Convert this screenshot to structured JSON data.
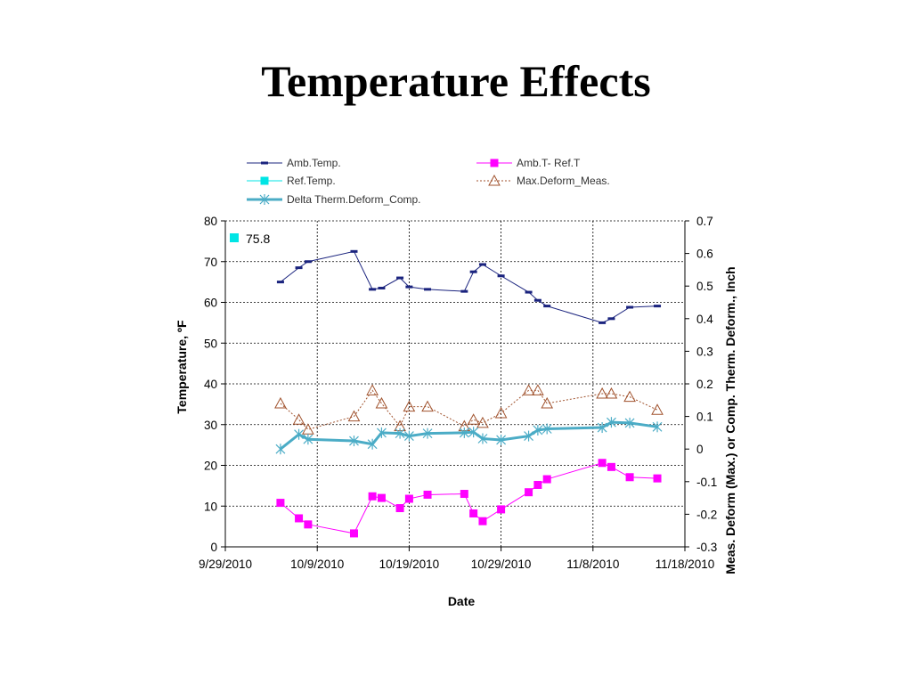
{
  "slide": {
    "title": "Temperature Effects"
  },
  "chart_data": {
    "type": "line",
    "title": "",
    "xlabel": "Date",
    "ylabel": "Temperature, ºF",
    "y2label": "Meas. Deform (Max.) or Comp. Therm. Deform., Inch",
    "x_ticks": [
      "9/29/2010",
      "10/9/2010",
      "10/19/2010",
      "10/29/2010",
      "11/8/2010",
      "11/18/2010"
    ],
    "xlim": [
      "2010-09-29",
      "2010-11-18"
    ],
    "ylim": [
      0,
      80
    ],
    "y_ticks": [
      0,
      10,
      20,
      30,
      40,
      50,
      60,
      70,
      80
    ],
    "y2lim": [
      -0.3,
      0.7
    ],
    "y2_ticks": [
      "-0.3",
      "-0.2",
      "-0.1",
      "0",
      "0.1",
      "0.2",
      "0.3",
      "0.4",
      "0.5",
      "0.6",
      "0.7"
    ],
    "grid": true,
    "legend_position": "top",
    "annotation": {
      "label": "75.8",
      "series": "Ref.Temp.",
      "color": "#00e5e5"
    },
    "series": [
      {
        "name": "Amb.Temp.",
        "axis": "left",
        "color": "#1a237e",
        "marker": "dash",
        "line": "solid",
        "points": [
          [
            "2010-10-05",
            65
          ],
          [
            "2010-10-07",
            68.5
          ],
          [
            "2010-10-08",
            70
          ],
          [
            "2010-10-13",
            72.5
          ],
          [
            "2010-10-15",
            63.2
          ],
          [
            "2010-10-16",
            63.5
          ],
          [
            "2010-10-18",
            66
          ],
          [
            "2010-10-19",
            63.8
          ],
          [
            "2010-10-21",
            63.2
          ],
          [
            "2010-10-25",
            62.7
          ],
          [
            "2010-10-26",
            67.5
          ],
          [
            "2010-10-27",
            69.3
          ],
          [
            "2010-10-29",
            66.5
          ],
          [
            "2010-11-01",
            62.5
          ],
          [
            "2010-11-02",
            60.5
          ],
          [
            "2010-11-03",
            59.1
          ],
          [
            "2010-11-09",
            55
          ],
          [
            "2010-11-10",
            56
          ],
          [
            "2010-11-12",
            58.8
          ],
          [
            "2010-11-15",
            59.1
          ]
        ]
      },
      {
        "name": "Amb.T- Ref.T",
        "axis": "left",
        "color": "#ff00ff",
        "marker": "square",
        "line": "solid",
        "points": [
          [
            "2010-10-05",
            10.8
          ],
          [
            "2010-10-07",
            7
          ],
          [
            "2010-10-08",
            5.5
          ],
          [
            "2010-10-13",
            3.3
          ],
          [
            "2010-10-15",
            12.4
          ],
          [
            "2010-10-16",
            12
          ],
          [
            "2010-10-18",
            9.5
          ],
          [
            "2010-10-19",
            11.8
          ],
          [
            "2010-10-21",
            12.8
          ],
          [
            "2010-10-25",
            13
          ],
          [
            "2010-10-26",
            8.2
          ],
          [
            "2010-10-27",
            6.3
          ],
          [
            "2010-10-29",
            9.2
          ],
          [
            "2010-11-01",
            13.4
          ],
          [
            "2010-11-02",
            15.2
          ],
          [
            "2010-11-03",
            16.6
          ],
          [
            "2010-11-09",
            20.6
          ],
          [
            "2010-11-10",
            19.6
          ],
          [
            "2010-11-12",
            17.1
          ],
          [
            "2010-11-15",
            16.8
          ]
        ]
      },
      {
        "name": "Ref.Temp.",
        "axis": "left",
        "color": "#00e5e5",
        "marker": "square",
        "line": "solid",
        "points": []
      },
      {
        "name": "Max.Deform_Meas.",
        "axis": "right",
        "color": "#a0522d",
        "marker": "triangle",
        "line": "dotted",
        "points": [
          [
            "2010-10-05",
            0.14
          ],
          [
            "2010-10-07",
            0.09
          ],
          [
            "2010-10-08",
            0.06
          ],
          [
            "2010-10-13",
            0.1
          ],
          [
            "2010-10-15",
            0.18
          ],
          [
            "2010-10-16",
            0.14
          ],
          [
            "2010-10-18",
            0.07
          ],
          [
            "2010-10-19",
            0.13
          ],
          [
            "2010-10-21",
            0.13
          ],
          [
            "2010-10-25",
            0.07
          ],
          [
            "2010-10-26",
            0.09
          ],
          [
            "2010-10-27",
            0.08
          ],
          [
            "2010-10-29",
            0.11
          ],
          [
            "2010-11-01",
            0.18
          ],
          [
            "2010-11-02",
            0.18
          ],
          [
            "2010-11-03",
            0.14
          ],
          [
            "2010-11-09",
            0.17
          ],
          [
            "2010-11-10",
            0.17
          ],
          [
            "2010-11-12",
            0.16
          ],
          [
            "2010-11-15",
            0.12
          ]
        ]
      },
      {
        "name": "Delta Therm.Deform_Comp.",
        "axis": "right",
        "color": "#4bacc6",
        "marker": "asterisk",
        "line": "solid-thick",
        "points": [
          [
            "2010-10-05",
            0
          ],
          [
            "2010-10-07",
            0.045
          ],
          [
            "2010-10-08",
            0.03
          ],
          [
            "2010-10-13",
            0.025
          ],
          [
            "2010-10-15",
            0.015
          ],
          [
            "2010-10-16",
            0.05
          ],
          [
            "2010-10-18",
            0.048
          ],
          [
            "2010-10-19",
            0.04
          ],
          [
            "2010-10-21",
            0.048
          ],
          [
            "2010-10-25",
            0.05
          ],
          [
            "2010-10-26",
            0.052
          ],
          [
            "2010-10-27",
            0.032
          ],
          [
            "2010-10-29",
            0.028
          ],
          [
            "2010-11-01",
            0.04
          ],
          [
            "2010-11-02",
            0.058
          ],
          [
            "2010-11-03",
            0.062
          ],
          [
            "2010-11-09",
            0.066
          ],
          [
            "2010-11-10",
            0.082
          ],
          [
            "2010-11-12",
            0.08
          ],
          [
            "2010-11-15",
            0.068
          ]
        ]
      }
    ]
  }
}
